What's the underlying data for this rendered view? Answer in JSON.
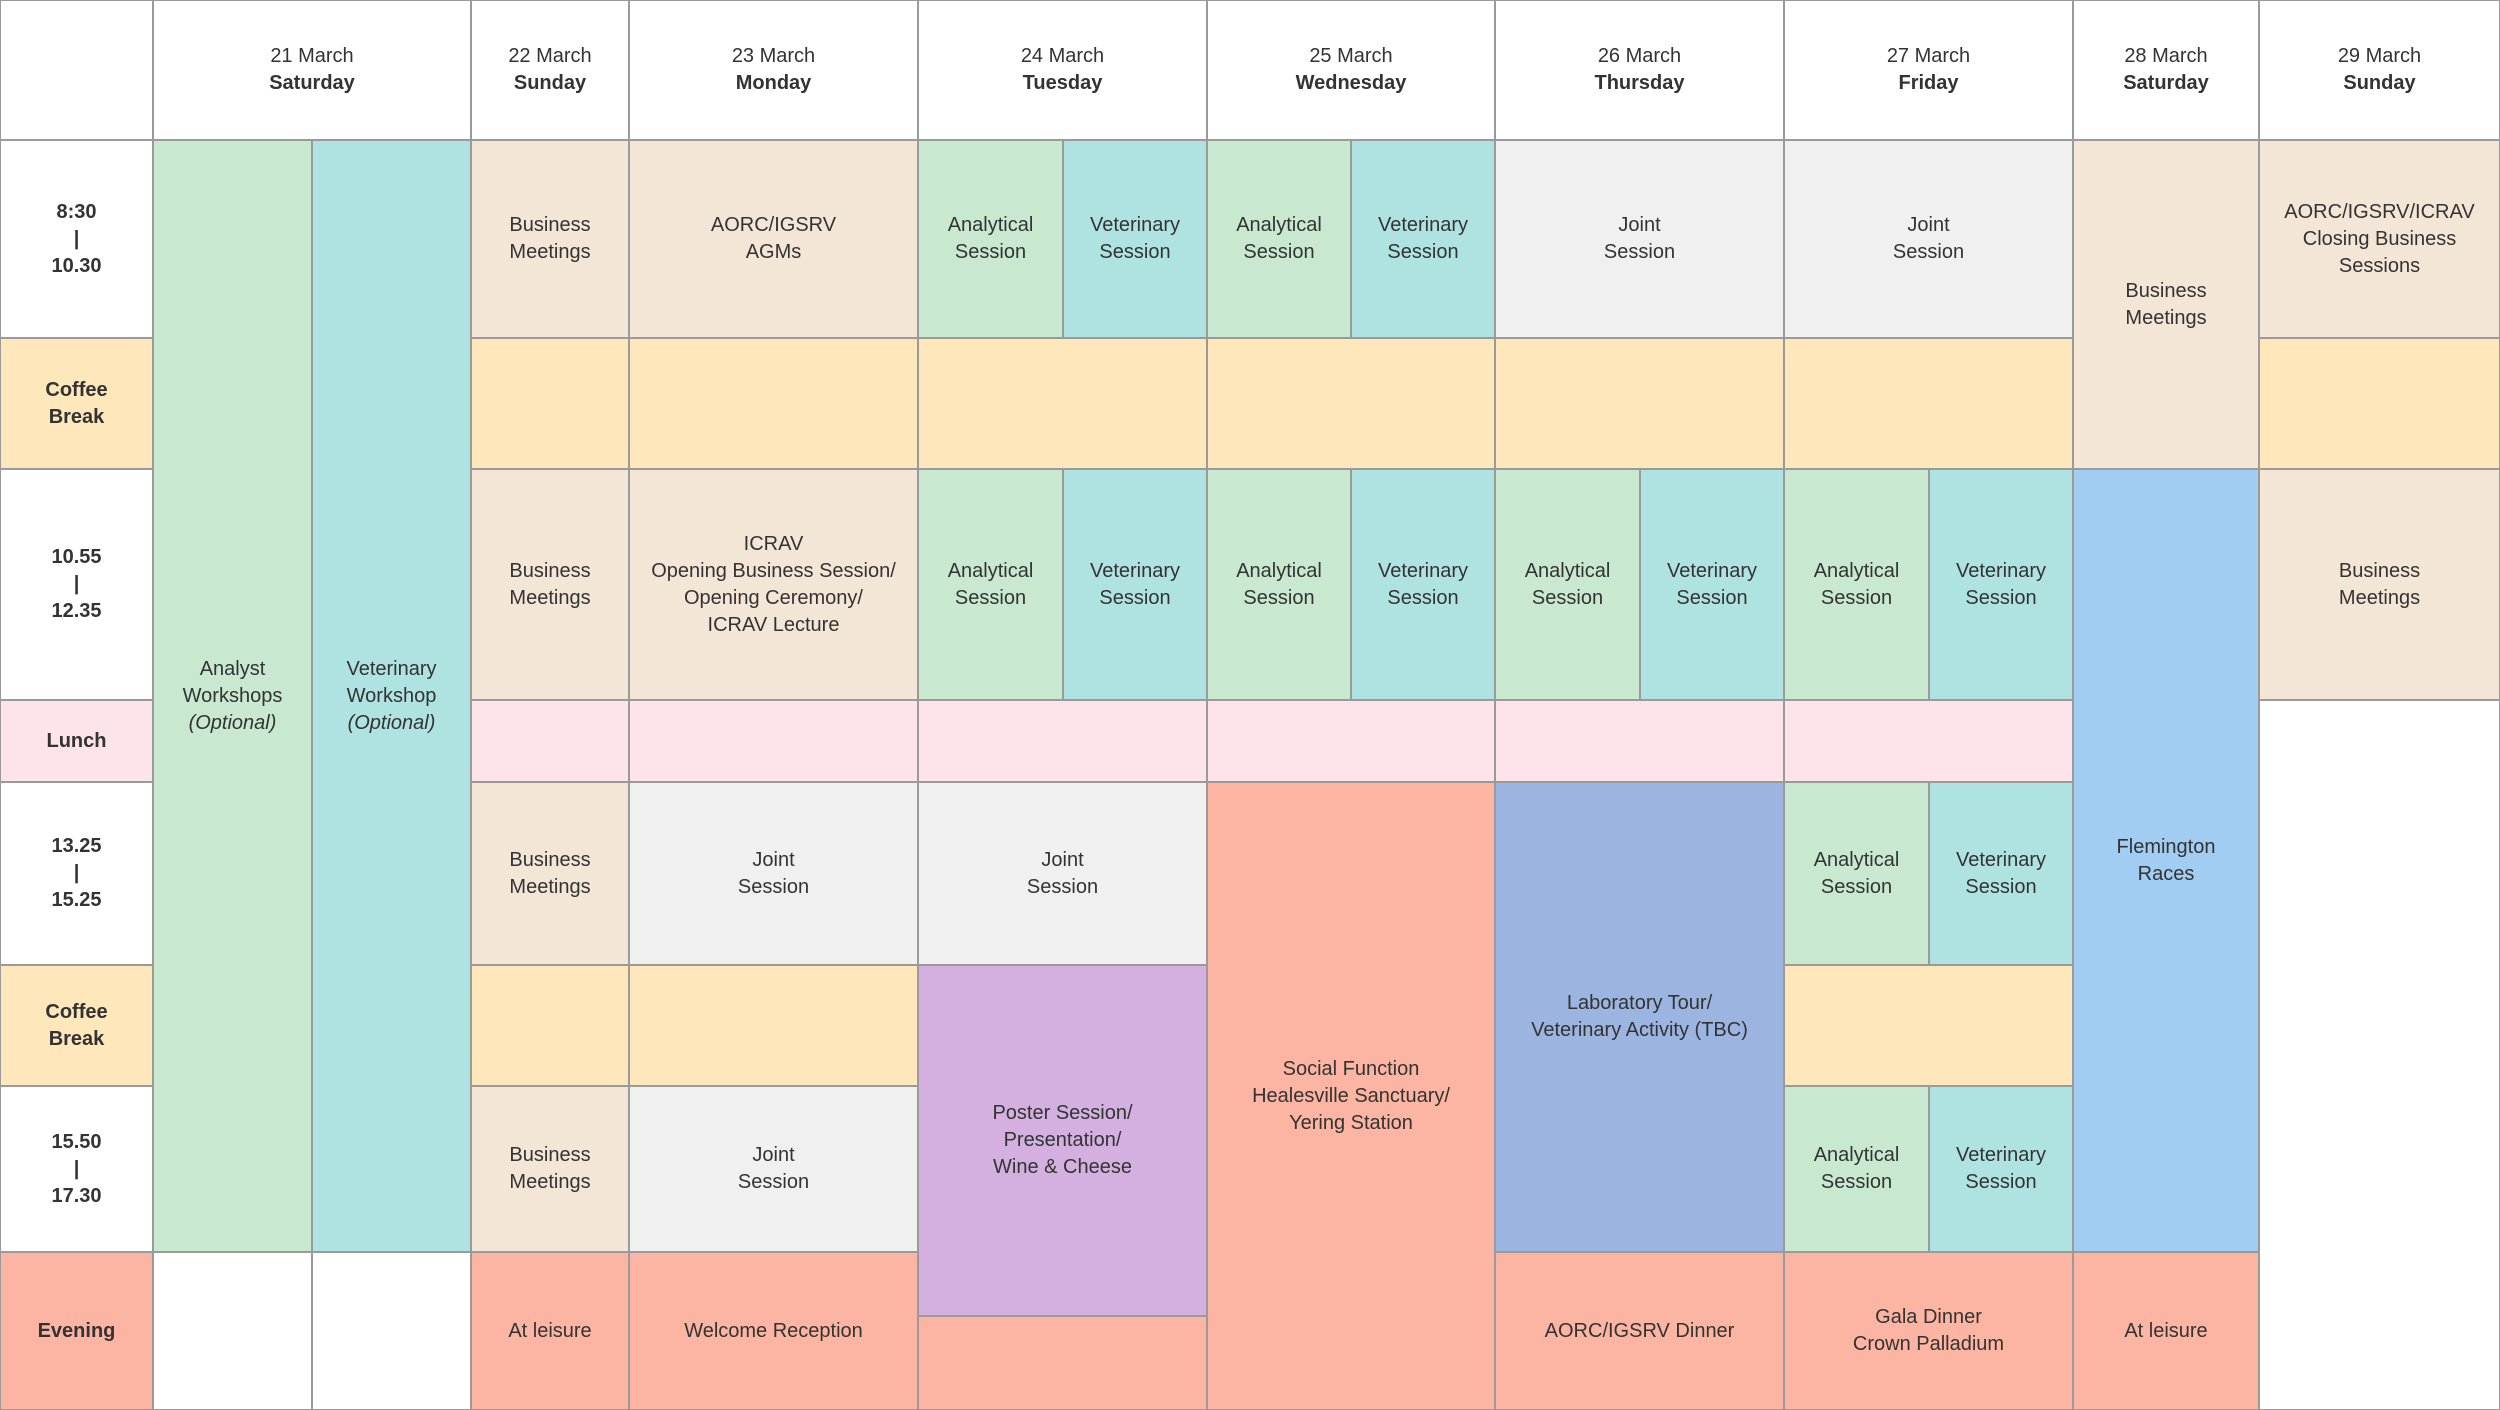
{
  "colors": {
    "white": "#ffffff",
    "business": "#f4e6d6",
    "analytical": "#c8e9d0",
    "veterinary": "#afe3e2",
    "joint": "#f0f0f0",
    "coffee": "#fee8bb",
    "lunch": "#fde4ea",
    "evening": "#fcb5a2",
    "poster": "#d4b0e0",
    "lab": "#9cb4e0",
    "races": "#a2cdf2",
    "border": "#9a9a9a"
  },
  "days": [
    {
      "date": "21 March",
      "weekday": "Saturday"
    },
    {
      "date": "22 March",
      "weekday": "Sunday"
    },
    {
      "date": "23 March",
      "weekday": "Monday"
    },
    {
      "date": "24 March",
      "weekday": "Tuesday"
    },
    {
      "date": "25 March",
      "weekday": "Wednesday"
    },
    {
      "date": "26 March",
      "weekday": "Thursday"
    },
    {
      "date": "27 March",
      "weekday": "Friday"
    },
    {
      "date": "28 March",
      "weekday": "Saturday"
    },
    {
      "date": "29 March",
      "weekday": "Sunday"
    }
  ],
  "time_slots": [
    {
      "lines": [
        "8:30",
        "|",
        "10.30"
      ]
    },
    {
      "lines": [
        "Coffee",
        "Break"
      ]
    },
    {
      "lines": [
        "10.55",
        "|",
        "12.35"
      ]
    },
    {
      "lines": [
        "Lunch"
      ]
    },
    {
      "lines": [
        "13.25",
        "|",
        "15.25"
      ]
    },
    {
      "lines": [
        "Coffee",
        "Break"
      ]
    },
    {
      "lines": [
        "15.50",
        "|",
        "17.30"
      ]
    },
    {
      "lines": [
        "Evening"
      ]
    }
  ],
  "events": [
    {
      "color": "analytical",
      "lines": [
        "Analyst",
        "Workshops",
        "(Optional)"
      ],
      "italic_last": true
    },
    {
      "color": "veterinary",
      "lines": [
        "Veterinary",
        "Workshop",
        "(Optional)"
      ],
      "italic_last": true
    },
    {
      "color": "white",
      "lines": []
    },
    {
      "color": "white",
      "lines": []
    },
    {
      "color": "business",
      "lines": [
        "Business",
        "Meetings"
      ]
    },
    {
      "color": "coffee",
      "lines": []
    },
    {
      "color": "business",
      "lines": [
        "Business",
        "Meetings"
      ]
    },
    {
      "color": "lunch",
      "lines": []
    },
    {
      "color": "business",
      "lines": [
        "Business",
        "Meetings"
      ]
    },
    {
      "color": "coffee",
      "lines": []
    },
    {
      "color": "business",
      "lines": [
        "Business",
        "Meetings"
      ]
    },
    {
      "color": "evening",
      "lines": [
        "At leisure"
      ]
    },
    {
      "color": "business",
      "lines": [
        "AORC/IGSRV",
        "AGMs"
      ]
    },
    {
      "color": "coffee",
      "lines": []
    },
    {
      "color": "business",
      "lines": [
        "ICRAV",
        "Opening Business Session/",
        "Opening Ceremony/",
        "ICRAV Lecture"
      ]
    },
    {
      "color": "lunch",
      "lines": []
    },
    {
      "color": "joint",
      "lines": [
        "Joint",
        "Session"
      ]
    },
    {
      "color": "coffee",
      "lines": []
    },
    {
      "color": "joint",
      "lines": [
        "Joint",
        "Session"
      ]
    },
    {
      "color": "evening",
      "lines": [
        "Welcome Reception"
      ]
    },
    {
      "color": "analytical",
      "lines": [
        "Analytical",
        "Session"
      ]
    },
    {
      "color": "veterinary",
      "lines": [
        "Veterinary",
        "Session"
      ]
    },
    {
      "color": "coffee",
      "lines": []
    },
    {
      "color": "analytical",
      "lines": [
        "Analytical",
        "Session"
      ]
    },
    {
      "color": "veterinary",
      "lines": [
        "Veterinary",
        "Session"
      ]
    },
    {
      "color": "lunch",
      "lines": []
    },
    {
      "color": "joint",
      "lines": [
        "Joint",
        "Session"
      ]
    },
    {
      "color": "poster",
      "lines": [
        "Poster Session/",
        "Presentation/",
        "Wine & Cheese"
      ]
    },
    {
      "color": "evening",
      "lines": []
    },
    {
      "color": "analytical",
      "lines": [
        "Analytical",
        "Session"
      ]
    },
    {
      "color": "veterinary",
      "lines": [
        "Veterinary",
        "Session"
      ]
    },
    {
      "color": "coffee",
      "lines": []
    },
    {
      "color": "analytical",
      "lines": [
        "Analytical",
        "Session"
      ]
    },
    {
      "color": "veterinary",
      "lines": [
        "Veterinary",
        "Session"
      ]
    },
    {
      "color": "lunch",
      "lines": []
    },
    {
      "color": "evening",
      "lines": [
        "Social Function",
        "Healesville Sanctuary/",
        "Yering Station"
      ]
    },
    {
      "color": "joint",
      "lines": [
        "Joint",
        "Session"
      ]
    },
    {
      "color": "coffee",
      "lines": []
    },
    {
      "color": "analytical",
      "lines": [
        "Analytical",
        "Session"
      ]
    },
    {
      "color": "veterinary",
      "lines": [
        "Veterinary",
        "Session"
      ]
    },
    {
      "color": "lunch",
      "lines": []
    },
    {
      "color": "lab",
      "lines": [
        "Laboratory Tour/",
        "Veterinary Activity (TBC)"
      ]
    },
    {
      "color": "evening",
      "lines": [
        "AORC/IGSRV Dinner"
      ]
    },
    {
      "color": "joint",
      "lines": [
        "Joint",
        "Session"
      ]
    },
    {
      "color": "coffee",
      "lines": []
    },
    {
      "color": "analytical",
      "lines": [
        "Analytical",
        "Session"
      ]
    },
    {
      "color": "veterinary",
      "lines": [
        "Veterinary",
        "Session"
      ]
    },
    {
      "color": "lunch",
      "lines": []
    },
    {
      "color": "analytical",
      "lines": [
        "Analytical",
        "Session"
      ]
    },
    {
      "color": "veterinary",
      "lines": [
        "Veterinary",
        "Session"
      ]
    },
    {
      "color": "coffee",
      "lines": []
    },
    {
      "color": "analytical",
      "lines": [
        "Analytical",
        "Session"
      ]
    },
    {
      "color": "veterinary",
      "lines": [
        "Veterinary",
        "Session"
      ]
    },
    {
      "color": "evening",
      "lines": [
        "Gala Dinner",
        "Crown Palladium"
      ]
    },
    {
      "color": "business",
      "lines": [
        "Business",
        "Meetings"
      ]
    },
    {
      "color": "races",
      "lines": [
        "Flemington",
        "Races"
      ]
    },
    {
      "color": "evening",
      "lines": [
        "At leisure"
      ]
    },
    {
      "color": "business",
      "lines": [
        "AORC/IGSRV/ICRAV",
        "Closing Business",
        "Sessions"
      ]
    },
    {
      "color": "coffee",
      "lines": []
    },
    {
      "color": "business",
      "lines": [
        "Business",
        "Meetings"
      ]
    },
    {
      "color": "white",
      "lines": []
    }
  ]
}
